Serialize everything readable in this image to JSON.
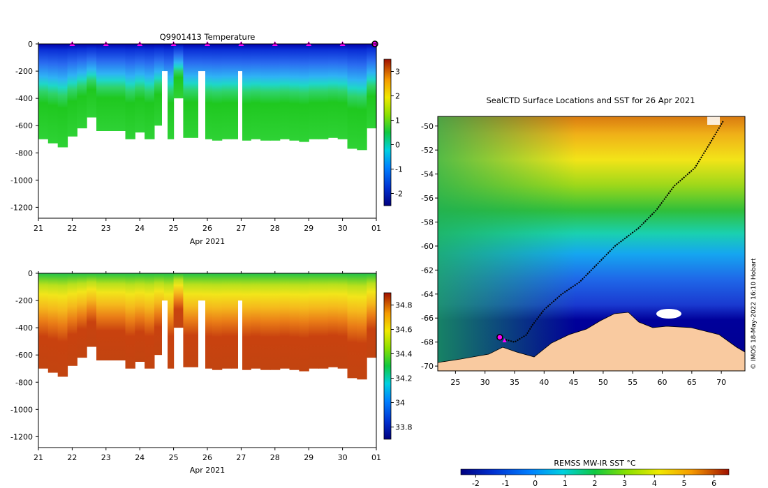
{
  "chart_data": [
    {
      "type": "heatmap",
      "title": "Q9901413  Temperature",
      "xlabel": "Apr 2021",
      "ylabel": "",
      "x_ticks": [
        "21",
        "22",
        "23",
        "24",
        "25",
        "26",
        "27",
        "28",
        "29",
        "30",
        "01"
      ],
      "xlim": [
        21,
        31
      ],
      "y_ticks": [
        "0",
        "-200",
        "-400",
        "-600",
        "-800",
        "-1000",
        "-1200"
      ],
      "ylim": [
        -1280,
        0
      ],
      "colorbar": {
        "ticks": [
          "-2",
          "-1",
          "0",
          "1",
          "2",
          "3"
        ],
        "range": [
          -2.5,
          3.5
        ]
      },
      "profile_bottoms_m": [
        -700,
        -730,
        -760,
        -680,
        -620,
        -540,
        -640,
        -640,
        -640,
        -700,
        -650,
        -700,
        -600,
        -700,
        -400,
        -690,
        -690,
        -700,
        -710,
        -700,
        -700,
        -710,
        -700,
        -710,
        -710,
        -700,
        -710,
        -720,
        -700,
        -700,
        -690,
        -700,
        -770,
        -780,
        -620
      ],
      "profile_markers_day": [
        22,
        23,
        24,
        25,
        26,
        27,
        28,
        29,
        30
      ],
      "last_profile_day": 31
    },
    {
      "type": "heatmap",
      "title": "",
      "xlabel": "Apr 2021",
      "ylabel": "",
      "x_ticks": [
        "21",
        "22",
        "23",
        "24",
        "25",
        "26",
        "27",
        "28",
        "29",
        "30",
        "01"
      ],
      "xlim": [
        21,
        31
      ],
      "y_ticks": [
        "0",
        "-200",
        "-400",
        "-600",
        "-800",
        "-1000",
        "-1200"
      ],
      "ylim": [
        -1280,
        0
      ],
      "colorbar": {
        "ticks": [
          "33.8",
          "34",
          "34.2",
          "34.4",
          "34.6",
          "34.8"
        ],
        "range": [
          33.7,
          34.9
        ]
      }
    },
    {
      "type": "heatmap",
      "title": "SealCTD Surface Locations and SST for 26 Apr 2021",
      "xlabel": "",
      "ylabel": "",
      "x_ticks": [
        "25",
        "30",
        "35",
        "40",
        "45",
        "50",
        "55",
        "60",
        "65",
        "70"
      ],
      "xlim": [
        22,
        74
      ],
      "y_ticks": [
        "-50",
        "-52",
        "-54",
        "-56",
        "-58",
        "-60",
        "-62",
        "-64",
        "-66",
        "-68",
        "-70"
      ],
      "ylim": [
        -70.4,
        -49.2
      ],
      "track": [
        [
          70.3,
          -49.6
        ],
        [
          68,
          -51.5
        ],
        [
          65.5,
          -53.5
        ],
        [
          62,
          -55
        ],
        [
          59,
          -57
        ],
        [
          56,
          -58.5
        ],
        [
          52,
          -60
        ],
        [
          49,
          -61.5
        ],
        [
          46,
          -63
        ],
        [
          43,
          -64
        ],
        [
          40,
          -65.3
        ],
        [
          38,
          -66.6
        ],
        [
          37,
          -67.4
        ],
        [
          35,
          -68
        ],
        [
          33.5,
          -67.8
        ]
      ],
      "seal_position": [
        32.5,
        -67.6
      ],
      "colorbar": {
        "label": "REMSS MW-IR SST °C",
        "ticks": [
          "-2",
          "-1",
          "0",
          "1",
          "2",
          "3",
          "4",
          "5",
          "6"
        ],
        "range": [
          -2.5,
          6.5
        ]
      }
    }
  ],
  "credit": "© IMOS 18-May-2022 16:10 Hobart",
  "colors": {
    "land": "#f9caa0",
    "marker": "#ff00ff",
    "track": "#000000"
  }
}
